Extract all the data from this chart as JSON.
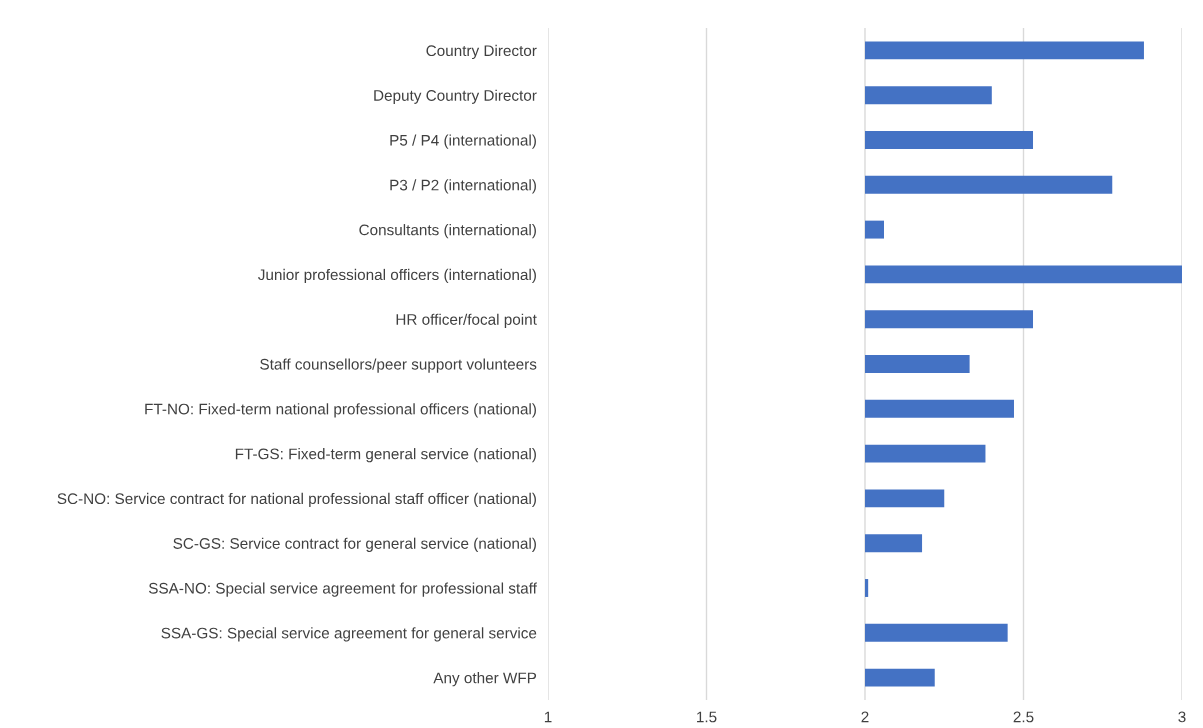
{
  "chart_data": {
    "type": "bar",
    "orientation": "horizontal",
    "color": "#4472c4",
    "categories": [
      "Country Director",
      "Deputy Country Director",
      "P5 / P4 (international)",
      "P3 / P2 (international)",
      "Consultants (international)",
      "Junior professional officers (international)",
      "HR officer/focal point",
      "Staff counsellors/peer support volunteers",
      "FT-NO: Fixed-term national professional officers (national)",
      "FT-GS: Fixed-term general service (national)",
      "SC-NO: Service contract for national professional staff officer (national)",
      "SC-GS: Service contract for general service (national)",
      "SSA-NO: Special service agreement for professional staff",
      "SSA-GS: Special service agreement for general service",
      "Any other WFP"
    ],
    "base": [
      2,
      2,
      2,
      2,
      2,
      2,
      2,
      2,
      2,
      2,
      2,
      2,
      2,
      2,
      2
    ],
    "values": [
      0.88,
      0.4,
      0.53,
      0.78,
      0.06,
      1.0,
      0.53,
      0.33,
      0.47,
      0.38,
      0.25,
      0.18,
      0.01,
      0.45,
      0.22
    ],
    "xlim": [
      1,
      3
    ],
    "xticks": [
      1,
      1.5,
      2,
      2.5,
      3
    ],
    "grid": "x"
  }
}
